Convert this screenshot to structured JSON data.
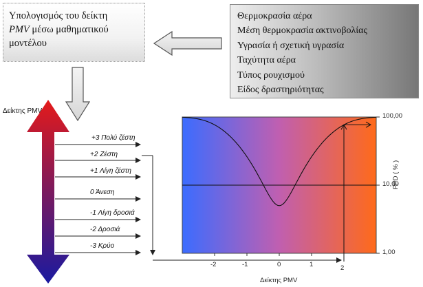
{
  "left_box": {
    "line1": "Υπολογισμός του δείκτη",
    "line2_em": "PMV",
    "line2_rest": " μέσω μαθηματικού",
    "line3": "μοντέλου"
  },
  "inputs": [
    "Θερμοκρασία αέρα",
    "Μέση θερμοκρασία ακτινοβολίας",
    "Υγρασία ή σχετική υγρασία",
    "Ταχύτητα αέρα",
    "Τύπος ρουχισμού",
    "Είδος δραστηριότητας"
  ],
  "scale": {
    "title": "Δείκτης PMV",
    "levels": [
      {
        "value": "+3",
        "label": "Πολύ ζέστη"
      },
      {
        "value": "+2",
        "label": "Ζέστη"
      },
      {
        "value": "+1",
        "label": "Λίγη ζέστη"
      },
      {
        "value": "0",
        "label": "Άνεση"
      },
      {
        "value": "-1",
        "label": "Λίγη δροσιά"
      },
      {
        "value": "-2",
        "label": "Δροσιά"
      },
      {
        "value": "-3",
        "label": "Κρύο"
      }
    ]
  },
  "chart_data": {
    "type": "line",
    "xlabel": "Δείκτης PMV",
    "ylabel": "PPD ( % )",
    "x_ticks": [
      "-2",
      "-1",
      "0",
      "1",
      "2"
    ],
    "y_ticks": [
      "1,00",
      "10,00",
      "100,00"
    ],
    "y_scale": "log",
    "xlim": [
      -3,
      3
    ],
    "ylim": [
      1,
      100
    ],
    "series": [
      {
        "x": [
          -3,
          -2.5,
          -2,
          -1.5,
          -1,
          -0.5,
          0,
          0.5,
          1,
          1.5,
          2,
          2.5,
          3
        ],
        "y": [
          99,
          94,
          77,
          52,
          26,
          10,
          5,
          10,
          26,
          52,
          77,
          94,
          99
        ]
      }
    ],
    "reference_line_y": 10,
    "highlight": {
      "x": 2,
      "y": 77
    },
    "background_gradient": [
      "#3b6cff",
      "#c05fb0",
      "#ff6a1a"
    ]
  },
  "colors": {
    "arrow_top": "#e41a1a",
    "arrow_bottom": "#1a1aa0"
  }
}
